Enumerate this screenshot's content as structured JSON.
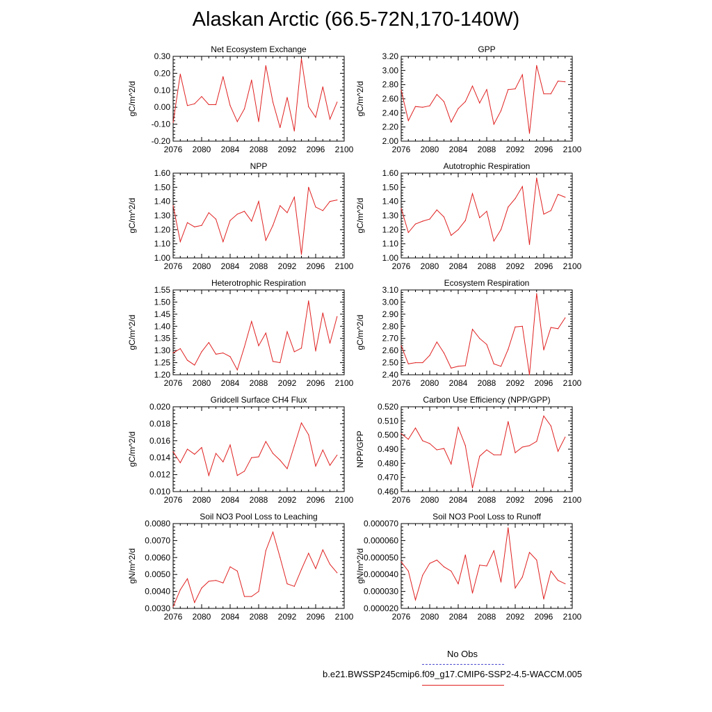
{
  "title": "Alaskan Arctic (66.5-72N,170-140W)",
  "legend": {
    "obs_label": "No Obs",
    "obs_color": "#4b4bcf",
    "model_label": "b.e21.BWSSP245cmip6.f09_g17.CMIP6-SSP2-4.5-WACCM.005",
    "model_color": "#e02020"
  },
  "chart_data": [
    {
      "type": "line",
      "title": "Net Ecosystem Exchange",
      "ylabel": "gC/m^2/d",
      "xlim": [
        2076,
        2100
      ],
      "x_ticks": [
        "2076",
        "2080",
        "2084",
        "2088",
        "2092",
        "2096",
        "2100"
      ],
      "ylim": [
        -0.2,
        0.3
      ],
      "y_ticks": [
        "-0.20",
        "-0.10",
        "0.00",
        "0.10",
        "0.20",
        "0.30"
      ],
      "x": [
        2076,
        2077,
        2078,
        2079,
        2080,
        2081,
        2082,
        2083,
        2084,
        2085,
        2086,
        2087,
        2088,
        2089,
        2090,
        2091,
        2092,
        2093,
        2094,
        2095,
        2096,
        2097,
        2098,
        2099
      ],
      "series": [
        {
          "values": [
            -0.09,
            0.195,
            0.01,
            0.02,
            0.063,
            0.015,
            0.015,
            0.18,
            0.01,
            -0.085,
            -0.01,
            0.16,
            -0.085,
            0.245,
            0.03,
            -0.12,
            0.058,
            -0.14,
            0.285,
            0.003,
            -0.06,
            0.12,
            -0.07,
            0.03
          ]
        }
      ]
    },
    {
      "type": "line",
      "title": "GPP",
      "ylabel": "gC/m^2/d",
      "xlim": [
        2076,
        2100
      ],
      "x_ticks": [
        "2076",
        "2080",
        "2084",
        "2088",
        "2092",
        "2096",
        "2100"
      ],
      "ylim": [
        2.0,
        3.2
      ],
      "y_ticks": [
        "2.00",
        "2.20",
        "2.40",
        "2.60",
        "2.80",
        "3.00",
        "3.20"
      ],
      "x": [
        2076,
        2077,
        2078,
        2079,
        2080,
        2081,
        2082,
        2083,
        2084,
        2085,
        2086,
        2087,
        2088,
        2089,
        2090,
        2091,
        2092,
        2093,
        2094,
        2095,
        2096,
        2097,
        2098,
        2099
      ],
      "series": [
        {
          "values": [
            2.72,
            2.29,
            2.49,
            2.48,
            2.5,
            2.66,
            2.56,
            2.27,
            2.46,
            2.56,
            2.78,
            2.54,
            2.73,
            2.24,
            2.43,
            2.73,
            2.74,
            2.94,
            2.11,
            3.07,
            2.67,
            2.67,
            2.85,
            2.84
          ]
        }
      ]
    },
    {
      "type": "line",
      "title": "NPP",
      "ylabel": "gC/m^2/d",
      "xlim": [
        2076,
        2100
      ],
      "x_ticks": [
        "2076",
        "2080",
        "2084",
        "2088",
        "2092",
        "2096",
        "2100"
      ],
      "ylim": [
        1.0,
        1.6
      ],
      "y_ticks": [
        "1.00",
        "1.10",
        "1.20",
        "1.30",
        "1.40",
        "1.50",
        "1.60"
      ],
      "x": [
        2076,
        2077,
        2078,
        2079,
        2080,
        2081,
        2082,
        2083,
        2084,
        2085,
        2086,
        2087,
        2088,
        2089,
        2090,
        2091,
        2092,
        2093,
        2094,
        2095,
        2096,
        2097,
        2098,
        2099
      ],
      "series": [
        {
          "values": [
            1.37,
            1.115,
            1.25,
            1.22,
            1.23,
            1.32,
            1.275,
            1.115,
            1.265,
            1.31,
            1.33,
            1.26,
            1.4,
            1.125,
            1.23,
            1.37,
            1.32,
            1.43,
            1.025,
            1.5,
            1.36,
            1.335,
            1.4,
            1.41
          ]
        }
      ]
    },
    {
      "type": "line",
      "title": "Autotrophic Respiration",
      "ylabel": "gC/m^2/d",
      "xlim": [
        2076,
        2100
      ],
      "x_ticks": [
        "2076",
        "2080",
        "2084",
        "2088",
        "2092",
        "2096",
        "2100"
      ],
      "ylim": [
        1.0,
        1.6
      ],
      "y_ticks": [
        "1.00",
        "1.10",
        "1.20",
        "1.30",
        "1.40",
        "1.50",
        "1.60"
      ],
      "x": [
        2076,
        2077,
        2078,
        2079,
        2080,
        2081,
        2082,
        2083,
        2084,
        2085,
        2086,
        2087,
        2088,
        2089,
        2090,
        2091,
        2092,
        2093,
        2094,
        2095,
        2096,
        2097,
        2098,
        2099
      ],
      "series": [
        {
          "values": [
            1.35,
            1.18,
            1.24,
            1.26,
            1.275,
            1.34,
            1.29,
            1.16,
            1.2,
            1.265,
            1.455,
            1.285,
            1.33,
            1.12,
            1.2,
            1.36,
            1.42,
            1.505,
            1.095,
            1.565,
            1.31,
            1.335,
            1.45,
            1.43
          ]
        }
      ]
    },
    {
      "type": "line",
      "title": "Heterotrophic Respiration",
      "ylabel": "gC/m^2/d",
      "xlim": [
        2076,
        2100
      ],
      "x_ticks": [
        "2076",
        "2080",
        "2084",
        "2088",
        "2092",
        "2096",
        "2100"
      ],
      "ylim": [
        1.2,
        1.55
      ],
      "y_ticks": [
        "1.20",
        "1.25",
        "1.30",
        "1.35",
        "1.40",
        "1.45",
        "1.50",
        "1.55"
      ],
      "x": [
        2076,
        2077,
        2078,
        2079,
        2080,
        2081,
        2082,
        2083,
        2084,
        2085,
        2086,
        2087,
        2088,
        2089,
        2090,
        2091,
        2092,
        2093,
        2094,
        2095,
        2096,
        2097,
        2098,
        2099
      ],
      "series": [
        {
          "values": [
            1.29,
            1.308,
            1.26,
            1.24,
            1.295,
            1.333,
            1.285,
            1.29,
            1.275,
            1.22,
            1.315,
            1.42,
            1.32,
            1.372,
            1.255,
            1.25,
            1.378,
            1.295,
            1.31,
            1.505,
            1.298,
            1.455,
            1.33,
            1.44
          ]
        }
      ]
    },
    {
      "type": "line",
      "title": "Ecosystem Respiration",
      "ylabel": "gC/m^2/d",
      "xlim": [
        2076,
        2100
      ],
      "x_ticks": [
        "2076",
        "2080",
        "2084",
        "2088",
        "2092",
        "2096",
        "2100"
      ],
      "ylim": [
        2.4,
        3.1
      ],
      "y_ticks": [
        "2.40",
        "2.50",
        "2.60",
        "2.70",
        "2.80",
        "2.90",
        "3.00",
        "3.10"
      ],
      "x": [
        2076,
        2077,
        2078,
        2079,
        2080,
        2081,
        2082,
        2083,
        2084,
        2085,
        2086,
        2087,
        2088,
        2089,
        2090,
        2091,
        2092,
        2093,
        2094,
        2095,
        2096,
        2097,
        2098,
        2099
      ],
      "series": [
        {
          "values": [
            2.64,
            2.49,
            2.5,
            2.5,
            2.56,
            2.67,
            2.58,
            2.455,
            2.47,
            2.475,
            2.775,
            2.7,
            2.65,
            2.49,
            2.47,
            2.61,
            2.795,
            2.8,
            2.4,
            3.07,
            2.605,
            2.79,
            2.78,
            2.87
          ]
        }
      ]
    },
    {
      "type": "line",
      "title": "Gridcell Surface CH4 Flux",
      "ylabel": "gC/m^2/d",
      "xlim": [
        2076,
        2100
      ],
      "x_ticks": [
        "2076",
        "2080",
        "2084",
        "2088",
        "2092",
        "2096",
        "2100"
      ],
      "ylim": [
        0.01,
        0.02
      ],
      "y_ticks": [
        "0.010",
        "0.012",
        "0.014",
        "0.016",
        "0.018",
        "0.020"
      ],
      "x": [
        2076,
        2077,
        2078,
        2079,
        2080,
        2081,
        2082,
        2083,
        2084,
        2085,
        2086,
        2087,
        2088,
        2089,
        2090,
        2091,
        2092,
        2093,
        2094,
        2095,
        2096,
        2097,
        2098,
        2099
      ],
      "series": [
        {
          "values": [
            0.0147,
            0.0134,
            0.015,
            0.0144,
            0.0152,
            0.0119,
            0.0145,
            0.0135,
            0.0155,
            0.0119,
            0.0124,
            0.014,
            0.0141,
            0.0159,
            0.0145,
            0.0137,
            0.0127,
            0.0154,
            0.0181,
            0.0167,
            0.013,
            0.0149,
            0.0131,
            0.0143
          ]
        }
      ]
    },
    {
      "type": "line",
      "title": "Carbon Use Efficiency (NPP/GPP)",
      "ylabel": "NPP/GPP",
      "xlim": [
        2076,
        2100
      ],
      "x_ticks": [
        "2076",
        "2080",
        "2084",
        "2088",
        "2092",
        "2096",
        "2100"
      ],
      "ylim": [
        0.46,
        0.52
      ],
      "y_ticks": [
        "0.460",
        "0.470",
        "0.480",
        "0.490",
        "0.500",
        "0.510",
        "0.520"
      ],
      "x": [
        2076,
        2077,
        2078,
        2079,
        2080,
        2081,
        2082,
        2083,
        2084,
        2085,
        2086,
        2087,
        2088,
        2089,
        2090,
        2091,
        2092,
        2093,
        2094,
        2095,
        2096,
        2097,
        2098,
        2099
      ],
      "series": [
        {
          "values": [
            0.501,
            0.497,
            0.505,
            0.496,
            0.494,
            0.4895,
            0.4905,
            0.4795,
            0.5055,
            0.4925,
            0.4625,
            0.485,
            0.4895,
            0.486,
            0.486,
            0.5095,
            0.4875,
            0.4915,
            0.4925,
            0.4955,
            0.5135,
            0.5065,
            0.4885,
            0.4985
          ]
        }
      ]
    },
    {
      "type": "line",
      "title": "Soil NO3 Pool Loss to Leaching",
      "ylabel": "gN/m^2/d",
      "xlim": [
        2076,
        2100
      ],
      "x_ticks": [
        "2076",
        "2080",
        "2084",
        "2088",
        "2092",
        "2096",
        "2100"
      ],
      "ylim": [
        0.003,
        0.008
      ],
      "y_ticks": [
        "0.0030",
        "0.0040",
        "0.0050",
        "0.0060",
        "0.0070",
        "0.0080"
      ],
      "x": [
        2076,
        2077,
        2078,
        2079,
        2080,
        2081,
        2082,
        2083,
        2084,
        2085,
        2086,
        2087,
        2088,
        2089,
        2090,
        2091,
        2092,
        2093,
        2094,
        2095,
        2096,
        2097,
        2098,
        2099
      ],
      "series": [
        {
          "values": [
            0.0031,
            0.0041,
            0.00475,
            0.00335,
            0.0042,
            0.0046,
            0.00465,
            0.0045,
            0.00545,
            0.0052,
            0.0037,
            0.0037,
            0.004,
            0.0064,
            0.0075,
            0.006,
            0.00445,
            0.0043,
            0.0053,
            0.00625,
            0.00535,
            0.00645,
            0.0056,
            0.0051
          ]
        }
      ]
    },
    {
      "type": "line",
      "title": "Soil NO3 Pool Loss to Runoff",
      "ylabel": "gN/m^2/d",
      "xlim": [
        2076,
        2100
      ],
      "x_ticks": [
        "2076",
        "2080",
        "2084",
        "2088",
        "2092",
        "2096",
        "2100"
      ],
      "ylim": [
        2e-05,
        7e-05
      ],
      "y_ticks": [
        "0.000020",
        "0.000030",
        "0.000040",
        "0.000050",
        "0.000060",
        "0.000070"
      ],
      "x": [
        2076,
        2077,
        2078,
        2079,
        2080,
        2081,
        2082,
        2083,
        2084,
        2085,
        2086,
        2087,
        2088,
        2089,
        2090,
        2091,
        2092,
        2093,
        2094,
        2095,
        2096,
        2097,
        2098,
        2099
      ],
      "series": [
        {
          "values": [
            4.75e-05,
            4.2e-05,
            2.5e-05,
            3.95e-05,
            4.65e-05,
            4.85e-05,
            4.45e-05,
            4.2e-05,
            3.45e-05,
            5.15e-05,
            2.9e-05,
            4.55e-05,
            4.5e-05,
            5.4e-05,
            3.55e-05,
            6.75e-05,
            3.2e-05,
            3.85e-05,
            5.3e-05,
            4.85e-05,
            2.55e-05,
            4.2e-05,
            3.65e-05,
            3.45e-05
          ]
        }
      ]
    }
  ]
}
